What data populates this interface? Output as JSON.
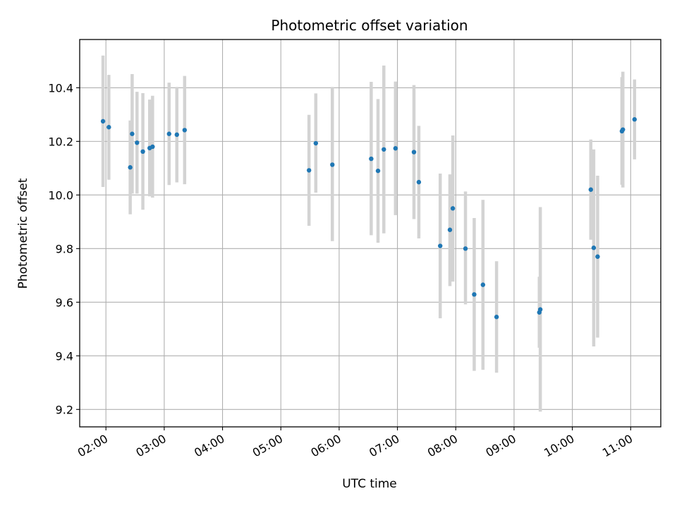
{
  "chart_data": {
    "type": "scatter",
    "title": "Photometric offset variation",
    "xlabel": "UTC time",
    "ylabel": "Photometric offset",
    "x_unit": "UTC time (HH:MM)",
    "xlim": [
      "01:33",
      "11:31"
    ],
    "ylim": [
      9.135,
      10.58
    ],
    "xticks": [
      "02:00",
      "03:00",
      "04:00",
      "05:00",
      "06:00",
      "07:00",
      "08:00",
      "09:00",
      "10:00",
      "11:00"
    ],
    "yticks": [
      9.2,
      9.4,
      9.6,
      9.8,
      10.0,
      10.2,
      10.4
    ],
    "ytick_labels": [
      "9.2",
      "9.4",
      "9.6",
      "9.8",
      "10.0",
      "10.2",
      "10.4"
    ],
    "grid": true,
    "marker_color": "#1f77b4",
    "errorbar_color": "#d3d3d3",
    "points": [
      {
        "x": "01:57",
        "y": 10.275,
        "err_low": 10.03,
        "err_high": 10.52
      },
      {
        "x": "02:03",
        "y": 10.253,
        "err_low": 10.057,
        "err_high": 10.448
      },
      {
        "x": "02:25",
        "y": 10.103,
        "err_low": 9.928,
        "err_high": 10.278
      },
      {
        "x": "02:27",
        "y": 10.228,
        "err_low": 10.005,
        "err_high": 10.451
      },
      {
        "x": "02:32",
        "y": 10.195,
        "err_low": 10.005,
        "err_high": 10.385
      },
      {
        "x": "02:38",
        "y": 10.162,
        "err_low": 9.945,
        "err_high": 10.38
      },
      {
        "x": "02:45",
        "y": 10.175,
        "err_low": 9.995,
        "err_high": 10.356
      },
      {
        "x": "02:48",
        "y": 10.18,
        "err_low": 9.99,
        "err_high": 10.37
      },
      {
        "x": "03:05",
        "y": 10.228,
        "err_low": 10.037,
        "err_high": 10.419
      },
      {
        "x": "03:13",
        "y": 10.225,
        "err_low": 10.047,
        "err_high": 10.403
      },
      {
        "x": "03:21",
        "y": 10.242,
        "err_low": 10.04,
        "err_high": 10.444
      },
      {
        "x": "05:29",
        "y": 10.092,
        "err_low": 9.885,
        "err_high": 10.299
      },
      {
        "x": "05:36",
        "y": 10.193,
        "err_low": 10.009,
        "err_high": 10.379
      },
      {
        "x": "05:53",
        "y": 10.113,
        "err_low": 9.828,
        "err_high": 10.403
      },
      {
        "x": "06:33",
        "y": 10.135,
        "err_low": 9.85,
        "err_high": 10.422
      },
      {
        "x": "06:40",
        "y": 10.09,
        "err_low": 9.822,
        "err_high": 10.358
      },
      {
        "x": "06:46",
        "y": 10.17,
        "err_low": 9.857,
        "err_high": 10.483
      },
      {
        "x": "06:58",
        "y": 10.174,
        "err_low": 9.925,
        "err_high": 10.423
      },
      {
        "x": "07:17",
        "y": 10.16,
        "err_low": 9.91,
        "err_high": 10.41
      },
      {
        "x": "07:22",
        "y": 10.048,
        "err_low": 9.838,
        "err_high": 10.258
      },
      {
        "x": "07:44",
        "y": 9.81,
        "err_low": 9.54,
        "err_high": 10.08
      },
      {
        "x": "07:54",
        "y": 9.87,
        "err_low": 9.66,
        "err_high": 10.077
      },
      {
        "x": "07:57",
        "y": 9.95,
        "err_low": 9.677,
        "err_high": 10.222
      },
      {
        "x": "08:10",
        "y": 9.8,
        "err_low": 9.592,
        "err_high": 10.013
      },
      {
        "x": "08:19",
        "y": 9.629,
        "err_low": 9.344,
        "err_high": 9.914
      },
      {
        "x": "08:28",
        "y": 9.665,
        "err_low": 9.348,
        "err_high": 9.982
      },
      {
        "x": "08:42",
        "y": 9.545,
        "err_low": 9.337,
        "err_high": 9.753
      },
      {
        "x": "09:26",
        "y": 9.562,
        "err_low": 9.43,
        "err_high": 9.695
      },
      {
        "x": "09:27",
        "y": 9.573,
        "err_low": 9.192,
        "err_high": 9.955
      },
      {
        "x": "10:19",
        "y": 10.02,
        "err_low": 9.833,
        "err_high": 10.207
      },
      {
        "x": "10:22",
        "y": 9.803,
        "err_low": 9.435,
        "err_high": 10.17
      },
      {
        "x": "10:26",
        "y": 9.77,
        "err_low": 9.468,
        "err_high": 10.072
      },
      {
        "x": "10:51",
        "y": 10.238,
        "err_low": 10.038,
        "err_high": 10.44
      },
      {
        "x": "10:52",
        "y": 10.244,
        "err_low": 10.028,
        "err_high": 10.46
      },
      {
        "x": "11:04",
        "y": 10.282,
        "err_low": 10.133,
        "err_high": 10.431
      }
    ]
  }
}
